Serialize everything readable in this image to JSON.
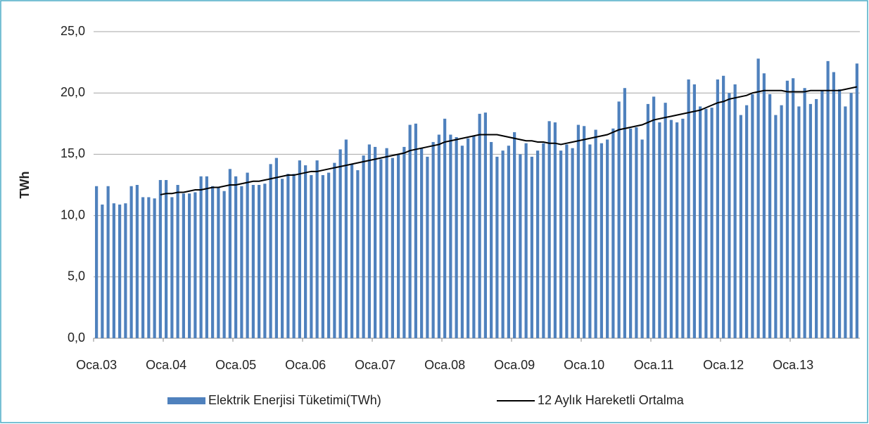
{
  "chart_data": {
    "type": "bar_line",
    "ylabel": "TWh",
    "categories": [
      "Oca.03",
      null,
      null,
      null,
      null,
      null,
      null,
      null,
      null,
      null,
      null,
      null,
      "Oca.04",
      null,
      null,
      null,
      null,
      null,
      null,
      null,
      null,
      null,
      null,
      null,
      "Oca.05",
      null,
      null,
      null,
      null,
      null,
      null,
      null,
      null,
      null,
      null,
      null,
      "Oca.06",
      null,
      null,
      null,
      null,
      null,
      null,
      null,
      null,
      null,
      null,
      null,
      "Oca.07",
      null,
      null,
      null,
      null,
      null,
      null,
      null,
      null,
      null,
      null,
      null,
      "Oca.08",
      null,
      null,
      null,
      null,
      null,
      null,
      null,
      null,
      null,
      null,
      null,
      "Oca.09",
      null,
      null,
      null,
      null,
      null,
      null,
      null,
      null,
      null,
      null,
      null,
      "Oca.10",
      null,
      null,
      null,
      null,
      null,
      null,
      null,
      null,
      null,
      null,
      null,
      "Oca.11",
      null,
      null,
      null,
      null,
      null,
      null,
      null,
      null,
      null,
      null,
      null,
      "Oca.12",
      null,
      null,
      null,
      null,
      null,
      null,
      null,
      null,
      null,
      null,
      null,
      "Oca.13",
      null,
      null,
      null,
      null,
      null,
      null,
      null,
      null,
      null,
      null,
      null
    ],
    "series": [
      {
        "name": "Elektrik Enerjisi Tüketimi(TWh)",
        "kind": "bar",
        "color": "#4f81bd",
        "values": [
          12.4,
          10.9,
          12.4,
          11.0,
          10.9,
          11.0,
          12.4,
          12.5,
          11.5,
          11.5,
          11.4,
          12.9,
          12.9,
          11.5,
          12.5,
          11.8,
          11.8,
          11.9,
          13.2,
          13.2,
          12.4,
          12.3,
          12.0,
          13.8,
          13.2,
          12.4,
          13.5,
          12.5,
          12.5,
          12.6,
          14.2,
          14.7,
          13.0,
          13.4,
          13.4,
          14.5,
          14.1,
          13.3,
          14.5,
          13.3,
          13.5,
          14.3,
          15.4,
          16.2,
          14.2,
          13.7,
          14.9,
          15.8,
          15.6,
          14.6,
          15.5,
          14.7,
          15.0,
          15.6,
          17.4,
          17.5,
          15.5,
          14.8,
          16.0,
          16.6,
          17.9,
          16.6,
          16.4,
          15.7,
          16.3,
          16.5,
          18.3,
          18.4,
          16.0,
          14.8,
          15.3,
          15.7,
          16.8,
          15.0,
          15.9,
          14.8,
          15.3,
          15.9,
          17.7,
          17.6,
          15.3,
          15.8,
          15.5,
          17.4,
          17.3,
          15.8,
          17.0,
          15.9,
          16.2,
          17.1,
          19.3,
          20.4,
          17.1,
          17.2,
          16.2,
          19.1,
          19.7,
          17.6,
          19.2,
          17.8,
          17.6,
          17.9,
          21.1,
          20.7,
          18.9,
          18.7,
          18.8,
          21.1,
          21.4,
          20.0,
          20.7,
          18.2,
          19.0,
          19.9,
          22.8,
          21.6,
          19.9,
          18.2,
          19.0,
          21.0,
          21.2,
          18.9,
          20.4,
          19.1,
          19.5,
          20.2,
          22.6,
          21.7,
          20.3,
          18.9,
          20.0,
          22.4
        ]
      },
      {
        "name": "12 Aylık Hareketli Ortalma",
        "kind": "line",
        "color": "#000000",
        "values": [
          null,
          null,
          null,
          null,
          null,
          null,
          null,
          null,
          null,
          null,
          null,
          11.7,
          11.8,
          11.8,
          11.9,
          11.9,
          12.0,
          12.1,
          12.1,
          12.2,
          12.3,
          12.3,
          12.4,
          12.5,
          12.5,
          12.6,
          12.7,
          12.8,
          12.8,
          12.9,
          13.0,
          13.1,
          13.2,
          13.3,
          13.3,
          13.4,
          13.5,
          13.6,
          13.6,
          13.7,
          13.8,
          13.9,
          14.0,
          14.1,
          14.2,
          14.3,
          14.4,
          14.5,
          14.6,
          14.7,
          14.8,
          14.9,
          15.0,
          15.1,
          15.3,
          15.4,
          15.5,
          15.6,
          15.7,
          15.8,
          16.0,
          16.1,
          16.2,
          16.3,
          16.4,
          16.5,
          16.6,
          16.6,
          16.6,
          16.6,
          16.5,
          16.4,
          16.3,
          16.2,
          16.1,
          16.1,
          16.0,
          16.0,
          15.9,
          15.9,
          15.8,
          15.9,
          16.0,
          16.1,
          16.2,
          16.3,
          16.4,
          16.5,
          16.6,
          16.8,
          17.0,
          17.1,
          17.2,
          17.3,
          17.4,
          17.6,
          17.8,
          17.9,
          18.0,
          18.1,
          18.2,
          18.3,
          18.4,
          18.5,
          18.6,
          18.8,
          19.0,
          19.2,
          19.3,
          19.5,
          19.6,
          19.7,
          19.8,
          20.0,
          20.1,
          20.2,
          20.2,
          20.2,
          20.2,
          20.1,
          20.1,
          20.1,
          20.1,
          20.2,
          20.2,
          20.2,
          20.2,
          20.2,
          20.2,
          20.3,
          20.4,
          20.5
        ]
      }
    ],
    "ylim": [
      0,
      25
    ],
    "yticks": [
      {
        "value": 0,
        "label": "0,0"
      },
      {
        "value": 5,
        "label": "5,0"
      },
      {
        "value": 10,
        "label": "10,0"
      },
      {
        "value": 15,
        "label": "15,0"
      },
      {
        "value": 20,
        "label": "20,0"
      },
      {
        "value": 25,
        "label": "25,0"
      }
    ],
    "grid": true,
    "legend": "bottom"
  }
}
